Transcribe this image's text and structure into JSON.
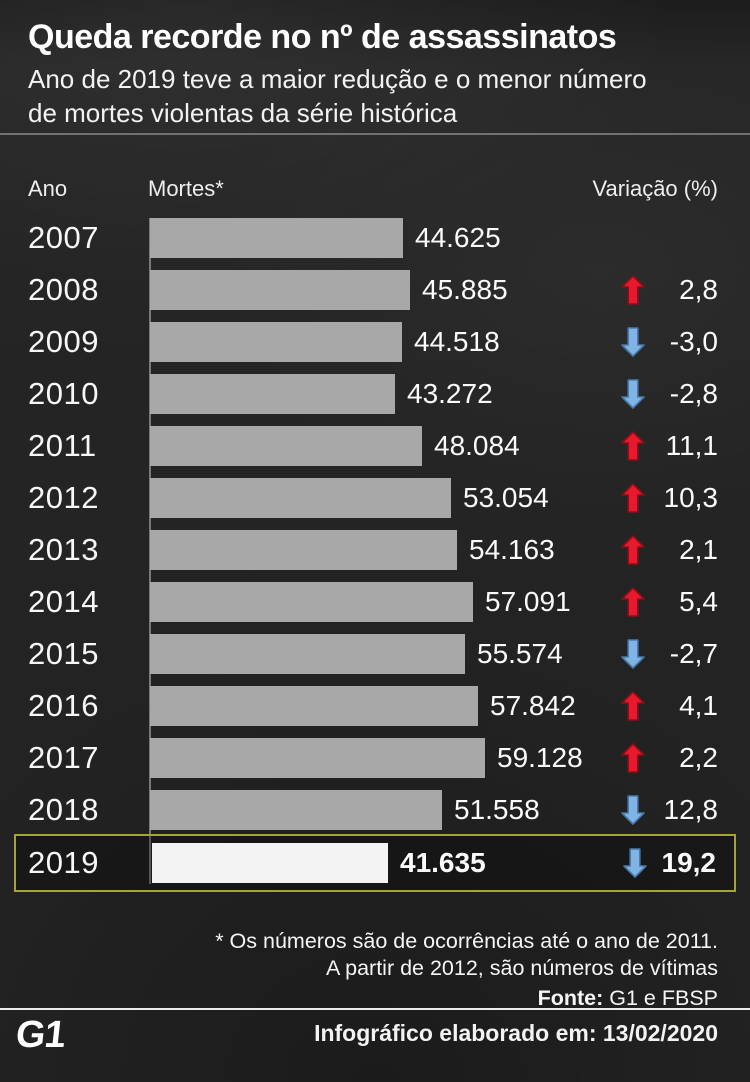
{
  "header": {
    "title": "Queda recorde no nº de assassinatos",
    "subtitle": "Ano de 2019 teve a maior redução e o menor número de mortes violentas da série histórica"
  },
  "columns": {
    "year": "Ano",
    "deaths": "Mortes*",
    "variation": "Variação (%)"
  },
  "chart_data": {
    "type": "bar",
    "orientation": "horizontal",
    "title": "Queda recorde no nº de assassinatos",
    "xlabel": "Mortes",
    "ylabel": "Ano",
    "xlim": [
      0,
      59128
    ],
    "grid": false,
    "bar_color": "#a8a8a8",
    "highlight_bar_color": "#f3f3f3",
    "up_arrow_color": "#e8192c",
    "down_arrow_color": "#80b4e4",
    "highlight_border_color": "#a8a23e",
    "categories": [
      "2007",
      "2008",
      "2009",
      "2010",
      "2011",
      "2012",
      "2013",
      "2014",
      "2015",
      "2016",
      "2017",
      "2018",
      "2019"
    ],
    "values": [
      44625,
      45885,
      44518,
      43272,
      48084,
      53054,
      54163,
      57091,
      55574,
      57842,
      59128,
      51558,
      41635
    ],
    "rows": [
      {
        "year": "2007",
        "value": 44625,
        "label": "44.625",
        "variation": null,
        "direction": null,
        "highlight": false
      },
      {
        "year": "2008",
        "value": 45885,
        "label": "45.885",
        "variation": "2,8",
        "direction": "up",
        "highlight": false
      },
      {
        "year": "2009",
        "value": 44518,
        "label": "44.518",
        "variation": "-3,0",
        "direction": "down",
        "highlight": false
      },
      {
        "year": "2010",
        "value": 43272,
        "label": "43.272",
        "variation": "-2,8",
        "direction": "down",
        "highlight": false
      },
      {
        "year": "2011",
        "value": 48084,
        "label": "48.084",
        "variation": "11,1",
        "direction": "up",
        "highlight": false
      },
      {
        "year": "2012",
        "value": 53054,
        "label": "53.054",
        "variation": "10,3",
        "direction": "up",
        "highlight": false
      },
      {
        "year": "2013",
        "value": 54163,
        "label": "54.163",
        "variation": "2,1",
        "direction": "up",
        "highlight": false
      },
      {
        "year": "2014",
        "value": 57091,
        "label": "57.091",
        "variation": "5,4",
        "direction": "up",
        "highlight": false
      },
      {
        "year": "2015",
        "value": 55574,
        "label": "55.574",
        "variation": "-2,7",
        "direction": "down",
        "highlight": false
      },
      {
        "year": "2016",
        "value": 57842,
        "label": "57.842",
        "variation": "4,1",
        "direction": "up",
        "highlight": false
      },
      {
        "year": "2017",
        "value": 59128,
        "label": "59.128",
        "variation": "2,2",
        "direction": "up",
        "highlight": false
      },
      {
        "year": "2018",
        "value": 51558,
        "label": "51.558",
        "variation": "12,8",
        "direction": "down",
        "highlight": false
      },
      {
        "year": "2019",
        "value": 41635,
        "label": "41.635",
        "variation": "19,2",
        "direction": "down",
        "highlight": true
      }
    ],
    "highlight_year": "2019",
    "legend": null
  },
  "footnotes": {
    "line1": "* Os números são de ocorrências até o ano de 2011.",
    "line2": "A partir de 2012, são números de vítimas",
    "source_label": "Fonte:",
    "source_value": " G1 e FBSP"
  },
  "footer": {
    "logo": "G1",
    "text": "Infográfico elaborado em: 13/02/2020"
  }
}
